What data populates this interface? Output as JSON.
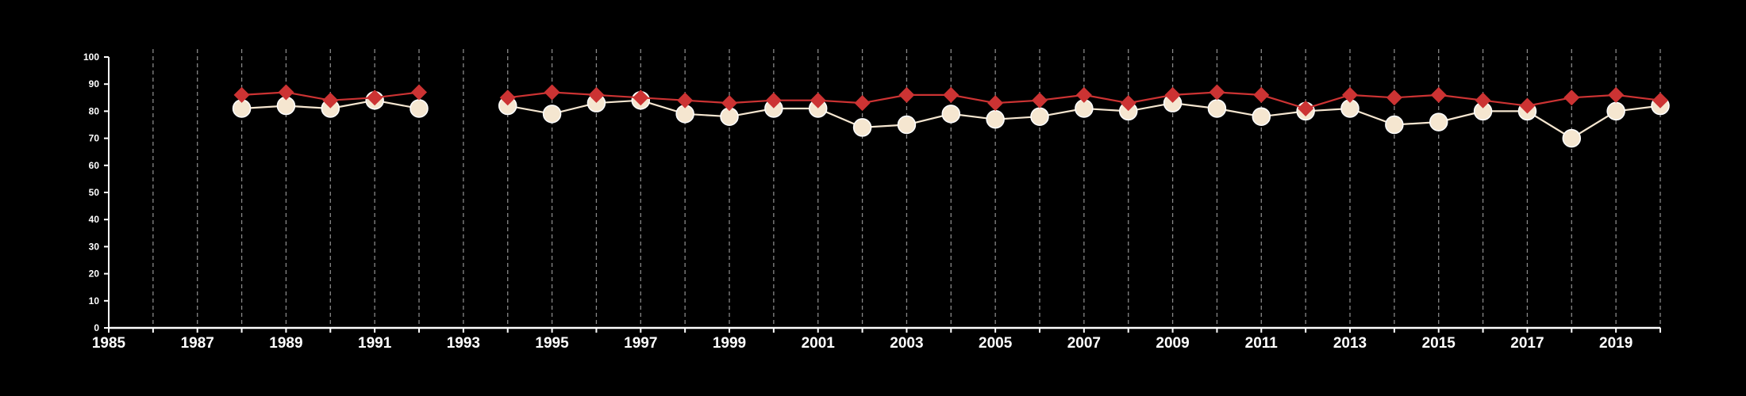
{
  "colors": {
    "background": "#000000",
    "axis": "#ffffff",
    "grid": "#888888",
    "series_red": "#cc3333",
    "series_cream": "#f5e6d0"
  },
  "chart_data": {
    "type": "line",
    "title": "",
    "xlabel": "",
    "ylabel": "",
    "xlim": [
      1985,
      2020
    ],
    "ylim": [
      0,
      100
    ],
    "x_ticks": [
      1985,
      1987,
      1989,
      1991,
      1993,
      1995,
      1997,
      1999,
      2001,
      2003,
      2005,
      2007,
      2009,
      2011,
      2013,
      2015,
      2017,
      2019
    ],
    "y_ticks": [
      0,
      10,
      20,
      30,
      40,
      50,
      60,
      70,
      80,
      90,
      100
    ],
    "grid": "vertical dashed lines at every year",
    "legend": "none",
    "series": [
      {
        "marker": "diamond",
        "color": "#cc3333",
        "points": [
          [
            1988,
            86
          ],
          [
            1989,
            87
          ],
          [
            1990,
            84
          ],
          [
            1991,
            85
          ],
          [
            1992,
            87
          ],
          [
            1994,
            85
          ],
          [
            1995,
            87
          ],
          [
            1996,
            86
          ],
          [
            1997,
            85
          ],
          [
            1998,
            84
          ],
          [
            1999,
            83
          ],
          [
            2000,
            84
          ],
          [
            2001,
            84
          ],
          [
            2002,
            83
          ],
          [
            2003,
            86
          ],
          [
            2004,
            86
          ],
          [
            2005,
            83
          ],
          [
            2006,
            84
          ],
          [
            2007,
            86
          ],
          [
            2008,
            83
          ],
          [
            2009,
            86
          ],
          [
            2010,
            87
          ],
          [
            2011,
            86
          ],
          [
            2012,
            81
          ],
          [
            2013,
            86
          ],
          [
            2014,
            85
          ],
          [
            2015,
            86
          ],
          [
            2016,
            84
          ],
          [
            2017,
            82
          ],
          [
            2018,
            85
          ],
          [
            2019,
            86
          ],
          [
            2020,
            84
          ]
        ]
      },
      {
        "marker": "circle",
        "color": "#f5e6d0",
        "points": [
          [
            1988,
            81
          ],
          [
            1989,
            82
          ],
          [
            1990,
            81
          ],
          [
            1991,
            84
          ],
          [
            1992,
            81
          ],
          [
            1994,
            82
          ],
          [
            1995,
            79
          ],
          [
            1996,
            83
          ],
          [
            1997,
            84
          ],
          [
            1998,
            79
          ],
          [
            1999,
            78
          ],
          [
            2000,
            81
          ],
          [
            2001,
            81
          ],
          [
            2002,
            74
          ],
          [
            2003,
            75
          ],
          [
            2004,
            79
          ],
          [
            2005,
            77
          ],
          [
            2006,
            78
          ],
          [
            2007,
            81
          ],
          [
            2008,
            80
          ],
          [
            2009,
            83
          ],
          [
            2010,
            81
          ],
          [
            2011,
            78
          ],
          [
            2012,
            80
          ],
          [
            2013,
            81
          ],
          [
            2014,
            75
          ],
          [
            2015,
            76
          ],
          [
            2016,
            80
          ],
          [
            2017,
            80
          ],
          [
            2018,
            70
          ],
          [
            2019,
            80
          ],
          [
            2020,
            82
          ]
        ]
      }
    ]
  }
}
